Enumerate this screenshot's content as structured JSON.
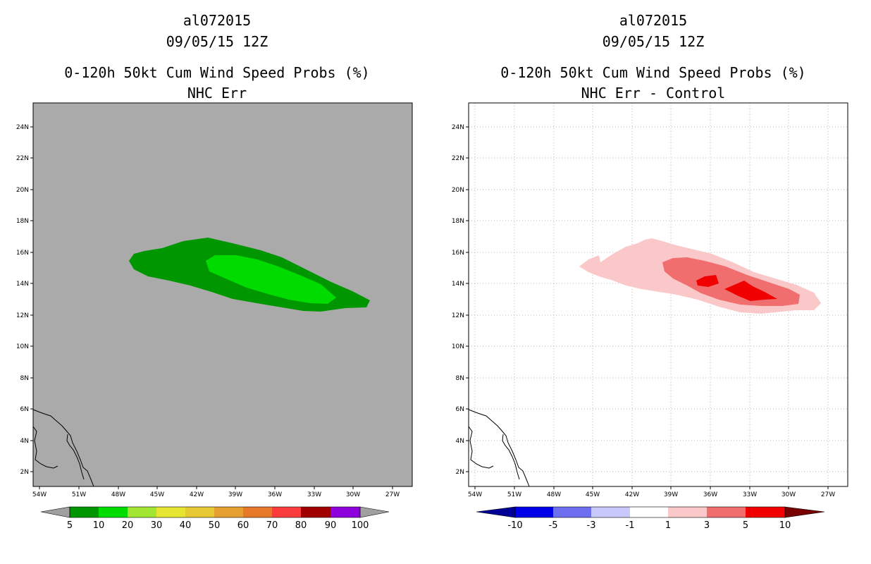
{
  "panels": [
    {
      "storm_id": "al072015",
      "datetime": "09/05/15 12Z",
      "product": "0-120h 50kt Cum Wind Speed Probs (%)",
      "subtitle": "NHC Err",
      "background": "#aaaaaa",
      "colorbar": {
        "labels": [
          "5",
          "10",
          "20",
          "30",
          "40",
          "50",
          "60",
          "70",
          "80",
          "90",
          "100"
        ],
        "colors": [
          "#009600",
          "#00dc00",
          "#a0e632",
          "#e6e632",
          "#e6c832",
          "#e6a032",
          "#e67828",
          "#fa3c3c",
          "#a00000",
          "#8c00dc"
        ],
        "end_color": "#a0a0a0"
      }
    },
    {
      "storm_id": "al072015",
      "datetime": "09/05/15 12Z",
      "product": "0-120h 50kt Cum Wind Speed Probs (%)",
      "subtitle": "NHC Err - Control",
      "background": "#ffffff",
      "colorbar": {
        "labels": [
          "-10",
          "-5",
          "-3",
          "-1",
          "1",
          "3",
          "5",
          "10"
        ],
        "colors": [
          "#0000e6",
          "#6e6ef0",
          "#c8c8fa",
          "#ffffff",
          "#fac8c8",
          "#f06e6e",
          "#f00000"
        ],
        "low_color": "#000096",
        "high_color": "#780000"
      }
    }
  ],
  "axes": {
    "lon_labels": [
      "54W",
      "51W",
      "48W",
      "45W",
      "42W",
      "39W",
      "36W",
      "33W",
      "30W",
      "27W"
    ],
    "lat_labels": [
      "2N",
      "4N",
      "6N",
      "8N",
      "10N",
      "12N",
      "14N",
      "16N",
      "18N",
      "20N",
      "22N",
      "24N"
    ],
    "lon_range": [
      -54.5,
      -25.5
    ],
    "lat_range": [
      1,
      25.5
    ]
  }
}
